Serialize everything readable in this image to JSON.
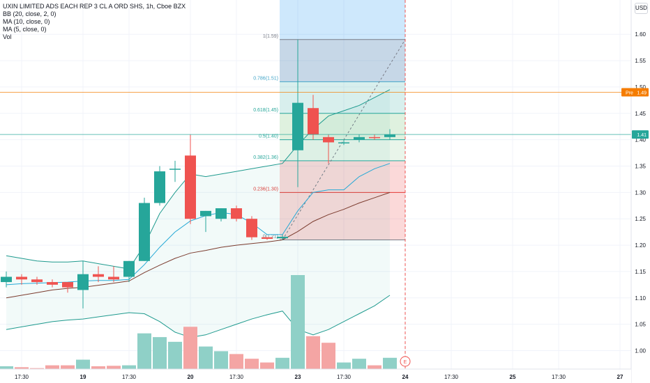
{
  "legend": {
    "title": "UXIN LIMITED ADS EACH REP 3 CL A ORD SHS, 1h, Cboe BZX",
    "bb": "BB (20, close, 2, 0)",
    "ma10": "MA (10, close, 0)",
    "ma5": "MA (5, close, 0)",
    "vol": "Vol"
  },
  "currency_button": "USD",
  "badges": {
    "pre_label": "Pre",
    "pre_value": "1.49",
    "last_value": "1.41"
  },
  "earnings_marker": "E",
  "colors": {
    "up": "#26a69a",
    "down": "#ef5350",
    "bb": "#1e9a8e",
    "ma10": "#7b3b2e",
    "ma5": "#26a9d6",
    "pre_line": "#f57c00",
    "last_line": "#26a69a",
    "grid": "#f0f3fa",
    "vol_up": "#8fd0c7",
    "vol_down": "#f4a5a4"
  },
  "chart_data": {
    "type": "candlestick",
    "ylim": [
      0.965,
      1.665
    ],
    "yticks": [
      "1.60",
      "1.55",
      "1.50",
      "1.45",
      "1.40",
      "1.35",
      "1.30",
      "1.25",
      "1.20",
      "1.15",
      "1.10",
      "1.05",
      "1.00"
    ],
    "xticks": [
      {
        "label": "17:30",
        "bar": 1
      },
      {
        "label": "19",
        "bar": 5
      },
      {
        "label": "17:30",
        "bar": 8
      },
      {
        "label": "20",
        "bar": 12
      },
      {
        "label": "17:30",
        "bar": 15
      },
      {
        "label": "23",
        "bar": 19
      },
      {
        "label": "17:30",
        "bar": 22
      },
      {
        "label": "24",
        "bar": 26
      },
      {
        "label": "17:30",
        "bar": 29
      },
      {
        "label": "25",
        "bar": 33
      },
      {
        "label": "17:30",
        "bar": 36
      },
      {
        "label": "27",
        "bar": 40
      }
    ],
    "candles": [
      {
        "o": 1.13,
        "h": 1.15,
        "l": 1.12,
        "c": 1.14,
        "v": 0.03
      },
      {
        "o": 1.14,
        "h": 1.145,
        "l": 1.125,
        "c": 1.135,
        "v": 0.02
      },
      {
        "o": 1.135,
        "h": 1.14,
        "l": 1.125,
        "c": 1.13,
        "v": 0.01
      },
      {
        "o": 1.13,
        "h": 1.135,
        "l": 1.12,
        "c": 1.125,
        "v": 0.04
      },
      {
        "o": 1.13,
        "h": 1.13,
        "l": 1.11,
        "c": 1.12,
        "v": 0.04
      },
      {
        "o": 1.115,
        "h": 1.17,
        "l": 1.08,
        "c": 1.145,
        "v": 0.1
      },
      {
        "o": 1.145,
        "h": 1.16,
        "l": 1.13,
        "c": 1.14,
        "v": 0.03
      },
      {
        "o": 1.14,
        "h": 1.16,
        "l": 1.13,
        "c": 1.135,
        "v": 0.035
      },
      {
        "o": 1.14,
        "h": 1.17,
        "l": 1.13,
        "c": 1.17,
        "v": 0.04
      },
      {
        "o": 1.17,
        "h": 1.29,
        "l": 1.17,
        "c": 1.28,
        "v": 0.38
      },
      {
        "o": 1.28,
        "h": 1.35,
        "l": 1.275,
        "c": 1.34,
        "v": 0.34
      },
      {
        "o": 1.345,
        "h": 1.36,
        "l": 1.32,
        "c": 1.345,
        "v": 0.29
      },
      {
        "o": 1.37,
        "h": 1.41,
        "l": 1.24,
        "c": 1.25,
        "v": 0.45
      },
      {
        "o": 1.255,
        "h": 1.265,
        "l": 1.225,
        "c": 1.265,
        "v": 0.24
      },
      {
        "o": 1.25,
        "h": 1.27,
        "l": 1.245,
        "c": 1.27,
        "v": 0.19
      },
      {
        "o": 1.27,
        "h": 1.275,
        "l": 1.245,
        "c": 1.25,
        "v": 0.16
      },
      {
        "o": 1.25,
        "h": 1.255,
        "l": 1.21,
        "c": 1.215,
        "v": 0.11
      },
      {
        "o": 1.215,
        "h": 1.215,
        "l": 1.21,
        "c": 1.212,
        "v": 0.07
      },
      {
        "o": 1.213,
        "h": 1.22,
        "l": 1.21,
        "c": 1.216,
        "v": 0.12
      },
      {
        "o": 1.38,
        "h": 1.59,
        "l": 1.31,
        "c": 1.47,
        "v": 1.0
      },
      {
        "o": 1.46,
        "h": 1.485,
        "l": 1.4,
        "c": 1.41,
        "v": 0.35
      },
      {
        "o": 1.405,
        "h": 1.41,
        "l": 1.355,
        "c": 1.395,
        "v": 0.28
      },
      {
        "o": 1.395,
        "h": 1.4,
        "l": 1.39,
        "c": 1.395,
        "v": 0.07
      },
      {
        "o": 1.4,
        "h": 1.41,
        "l": 1.395,
        "c": 1.405,
        "v": 0.11
      },
      {
        "o": 1.405,
        "h": 1.41,
        "l": 1.4,
        "c": 1.403,
        "v": 0.04
      },
      {
        "o": 1.405,
        "h": 1.42,
        "l": 1.4,
        "c": 1.41,
        "v": 0.12
      }
    ],
    "fib": {
      "levels": [
        {
          "label": "1(1.59)",
          "price": 1.59,
          "color": "#787b86",
          "fill": "rgba(120,123,134,0.18)"
        },
        {
          "label": "0.786(1.51)",
          "price": 1.51,
          "color": "#42a5c8",
          "fill": "rgba(33,150,243,0.18)"
        },
        {
          "label": "0.618(1.45)",
          "price": 1.45,
          "color": "#26a69a",
          "fill": "rgba(38,166,154,0.18)"
        },
        {
          "label": "0.5(1.40)",
          "price": 1.4,
          "color": "#26a69a",
          "fill": "rgba(76,175,80,0.18)"
        },
        {
          "label": "0.382(1.36)",
          "price": 1.36,
          "color": "#26a69a",
          "fill": "rgba(76,175,80,0.12)"
        },
        {
          "label": "0.236(1.30)",
          "price": 1.3,
          "color": "#e53935",
          "fill": "rgba(239,83,80,0.22)"
        },
        {
          "label": "0(1.21)",
          "price": 1.21,
          "color": "#787b86",
          "fill": null
        }
      ]
    },
    "bb_upper": [
      1.18,
      1.175,
      1.17,
      1.168,
      1.168,
      1.17,
      1.165,
      1.16,
      1.155,
      1.2,
      1.26,
      1.3,
      1.335,
      1.33,
      1.335,
      1.34,
      1.345,
      1.35,
      1.355,
      1.39,
      1.42,
      1.445,
      1.455,
      1.465,
      1.48,
      1.495
    ],
    "bb_lower": [
      1.04,
      1.045,
      1.05,
      1.055,
      1.058,
      1.06,
      1.064,
      1.068,
      1.072,
      1.07,
      1.055,
      1.035,
      1.025,
      1.03,
      1.04,
      1.05,
      1.06,
      1.068,
      1.075,
      1.04,
      1.03,
      1.04,
      1.055,
      1.07,
      1.085,
      1.105
    ],
    "ma10": [
      1.1,
      1.105,
      1.11,
      1.115,
      1.118,
      1.12,
      1.124,
      1.128,
      1.132,
      1.148,
      1.162,
      1.175,
      1.185,
      1.19,
      1.196,
      1.2,
      1.203,
      1.206,
      1.21,
      1.226,
      1.245,
      1.258,
      1.268,
      1.28,
      1.29,
      1.3
    ],
    "ma5": [
      1.125,
      1.127,
      1.128,
      1.129,
      1.13,
      1.132,
      1.133,
      1.133,
      1.135,
      1.163,
      1.196,
      1.225,
      1.246,
      1.256,
      1.262,
      1.258,
      1.242,
      1.22,
      1.22,
      1.265,
      1.3,
      1.305,
      1.305,
      1.33,
      1.345,
      1.355
    ],
    "pre_price": 1.49,
    "last_price": 1.41
  }
}
